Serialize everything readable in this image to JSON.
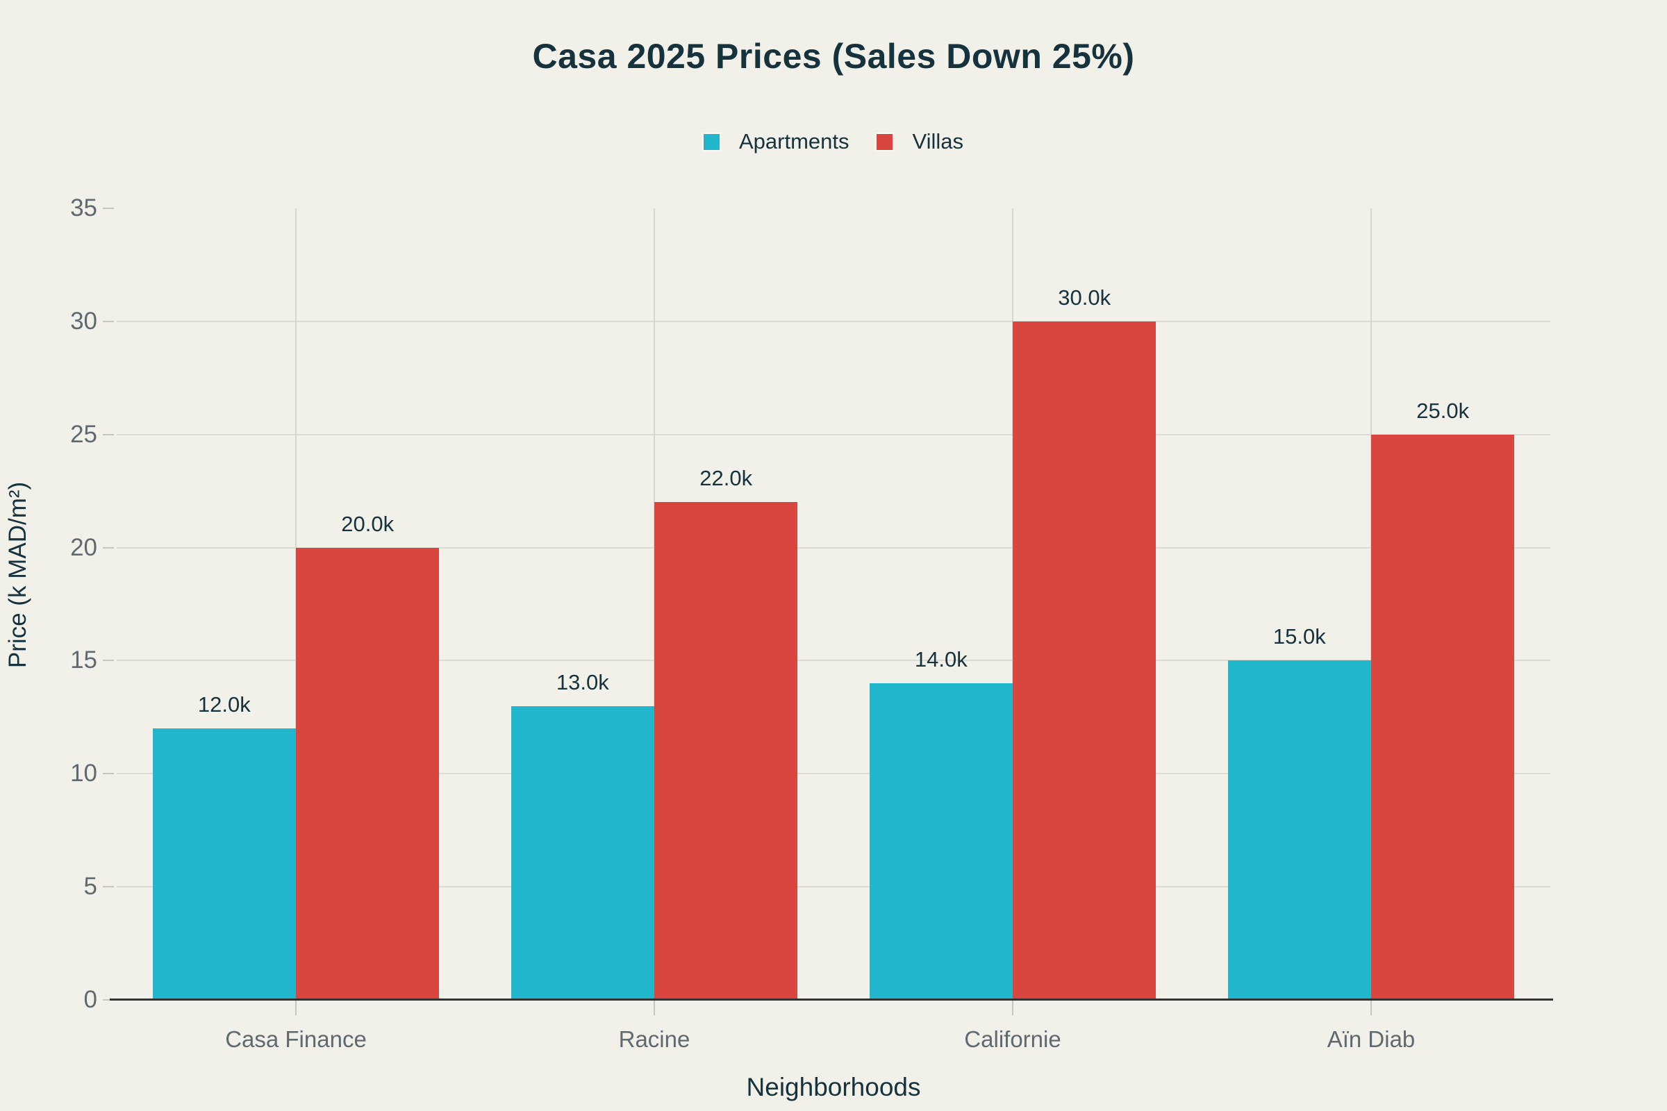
{
  "title": "Casa 2025 Prices (Sales Down 25%)",
  "legend": {
    "items": [
      {
        "label": "Apartments",
        "color": "#22b6cc"
      },
      {
        "label": "Villas",
        "color": "#d9463f"
      }
    ]
  },
  "colors": {
    "background": "#f1f1ea",
    "apartments": "#22b6cc",
    "villas": "#d9463f",
    "dark_text": "#16323d",
    "tick_text": "#60696f",
    "gridline": "#dbdad3",
    "axis_line": "#333333"
  },
  "chart_data": {
    "type": "bar",
    "categories": [
      "Casa Finance",
      "Racine",
      "Californie",
      "Aïn Diab"
    ],
    "series": [
      {
        "name": "Apartments",
        "color": "#22b6cc",
        "values": [
          12,
          13,
          14,
          15
        ],
        "labels": [
          "12.0k",
          "13.0k",
          "14.0k",
          "15.0k"
        ]
      },
      {
        "name": "Villas",
        "color": "#d9463f",
        "values": [
          20,
          22,
          30,
          25
        ],
        "labels": [
          "20.0k",
          "22.0k",
          "30.0k",
          "25.0k"
        ]
      }
    ],
    "title": "Casa 2025 Prices (Sales Down 25%)",
    "xlabel": "Neighborhoods",
    "ylabel": "Price (k MAD/m²)",
    "ylim": [
      0,
      35
    ],
    "yticks": [
      0,
      5,
      10,
      15,
      20,
      25,
      30,
      35
    ],
    "grid_horizontal_ticks": [
      5,
      10,
      15,
      20,
      25,
      30
    ],
    "grid_vertical": "category-centers",
    "legend_position": "top-center",
    "bar_band_fraction": 0.8
  }
}
